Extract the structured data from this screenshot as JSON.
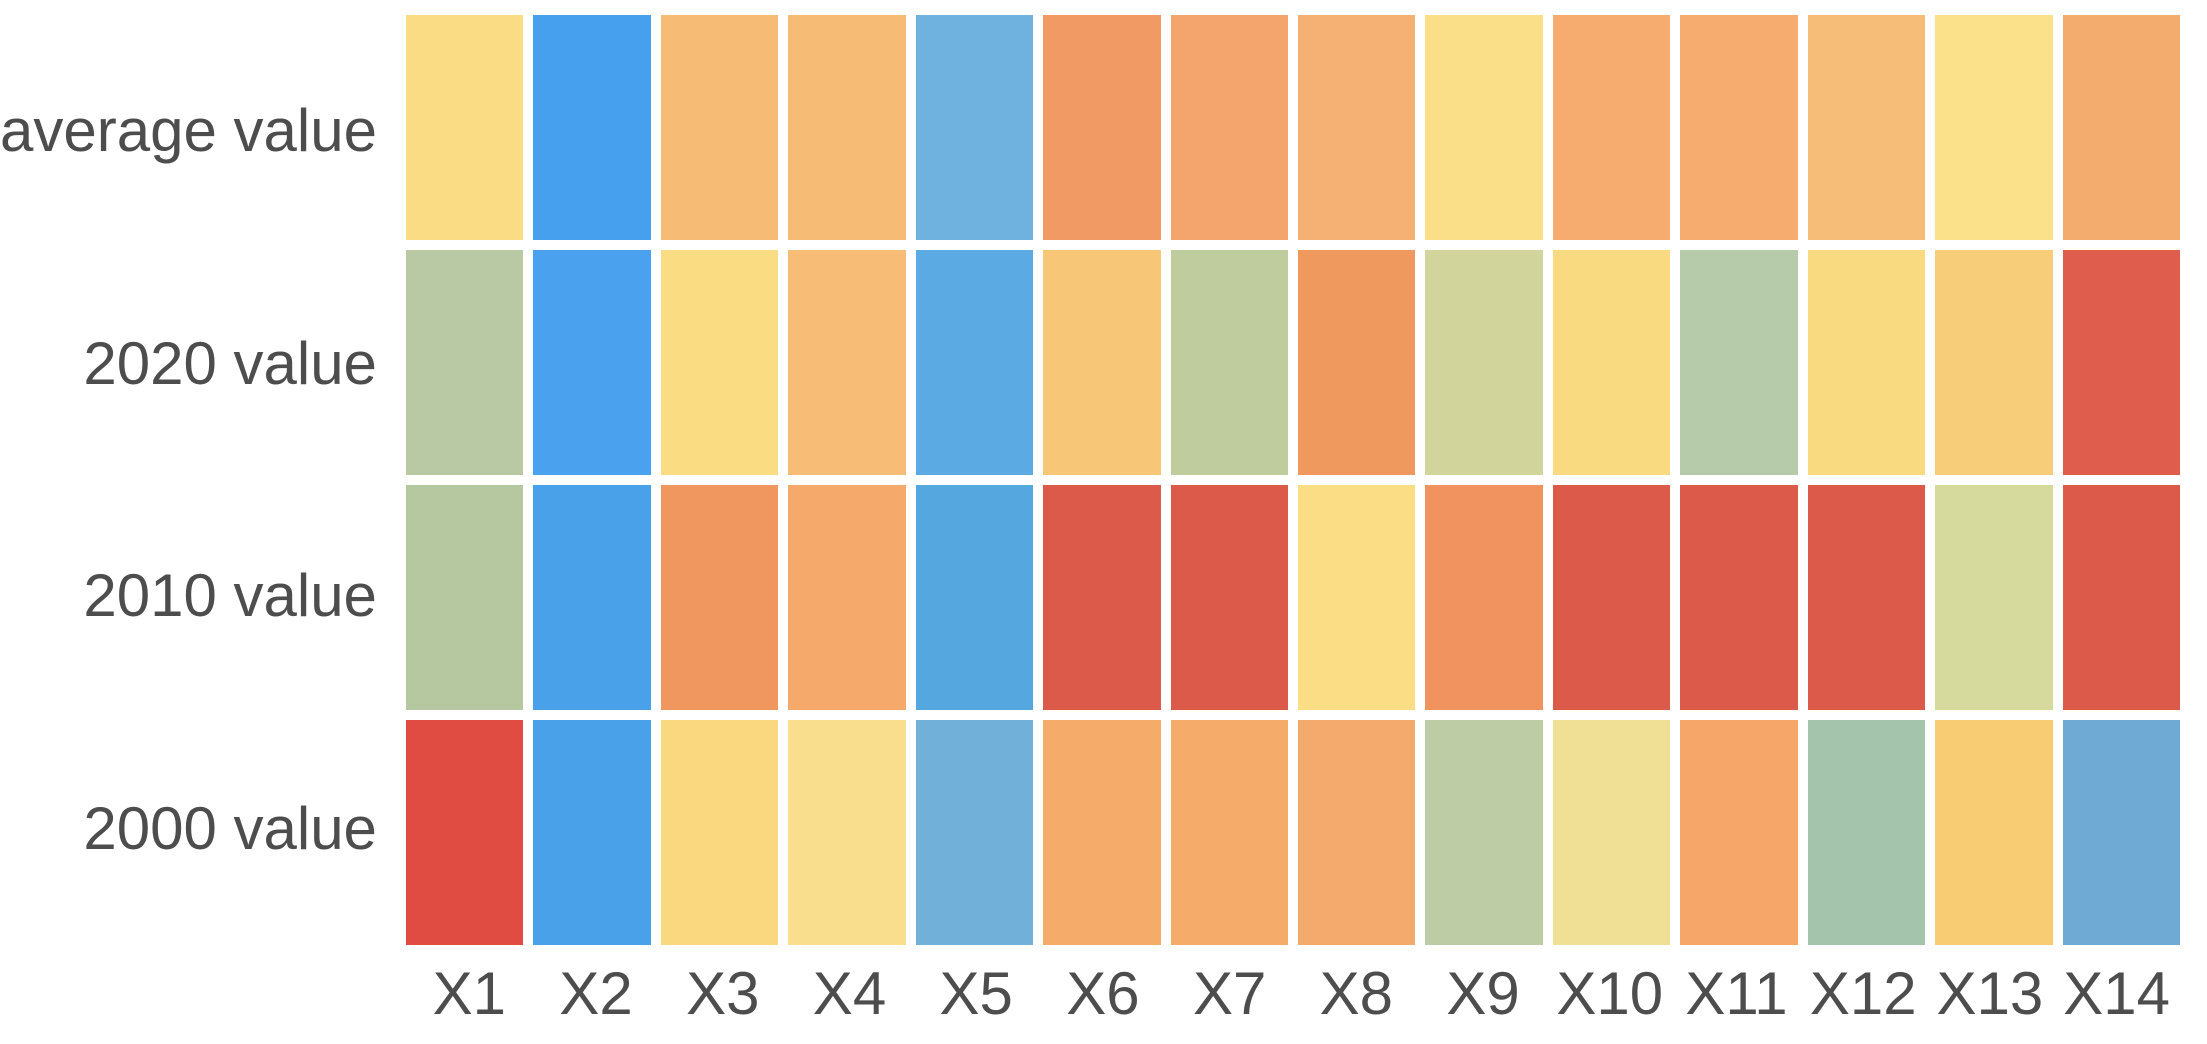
{
  "chart_data": {
    "type": "heatmap",
    "title": "",
    "xlabel": "",
    "ylabel": "",
    "legend": "none",
    "grid": "white gaps between cells",
    "background_color": "#ffffff",
    "label_color": "#4d4d4d",
    "cell_gap_color": "#ffffff",
    "palette_note": "diverging red-orange-yellow-green-blue (RdYlBu-like), no colorbar shown, no numeric values shown",
    "x_categories": [
      "X1",
      "X2",
      "X3",
      "X4",
      "X5",
      "X6",
      "X7",
      "X8",
      "X9",
      "X10",
      "X11",
      "X12",
      "X13",
      "X14"
    ],
    "y_categories": [
      "average value",
      "2020 value",
      "2010 value",
      "2000 value"
    ],
    "rows": [
      {
        "label": "average value",
        "colors": [
          "#FADC85",
          "#46A0ED",
          "#F6BB74",
          "#F6BB74",
          "#6FB2DF",
          "#F29A64",
          "#F4A56D",
          "#F5B173",
          "#FBDF88",
          "#F5AC6E",
          "#F5AC6E",
          "#F6BD78",
          "#FBE18A",
          "#F3AC6D"
        ]
      },
      {
        "label": "2020 value",
        "colors": [
          "#B8C9A4",
          "#4AA2EE",
          "#FADC82",
          "#F7BC75",
          "#5CAAE3",
          "#F7C677",
          "#BFCD9E",
          "#F0995F",
          "#D2D59B",
          "#FADA80",
          "#B5CBAA",
          "#FADA80",
          "#F7CD79",
          "#DE5D4C"
        ]
      },
      {
        "label": "2010 value",
        "colors": [
          "#B6C89F",
          "#49A1E9",
          "#F0965F",
          "#F5A96B",
          "#55A7E0",
          "#DB5A4A",
          "#DB5A4A",
          "#FADD84",
          "#F0935F",
          "#DB5A4A",
          "#DB5A4A",
          "#DB5A4A",
          "#D6DA9D",
          "#DB5A4A"
        ]
      },
      {
        "label": "2000 value",
        "colors": [
          "#E04C42",
          "#49A1E9",
          "#FAD87F",
          "#F8DE8D",
          "#70B0D9",
          "#F5AC6B",
          "#F5AC6B",
          "#F5AA6D",
          "#BECCA5",
          "#EFE095",
          "#F5A668",
          "#A5C4AC",
          "#F8CC73",
          "#6FAAD4"
        ]
      }
    ]
  }
}
